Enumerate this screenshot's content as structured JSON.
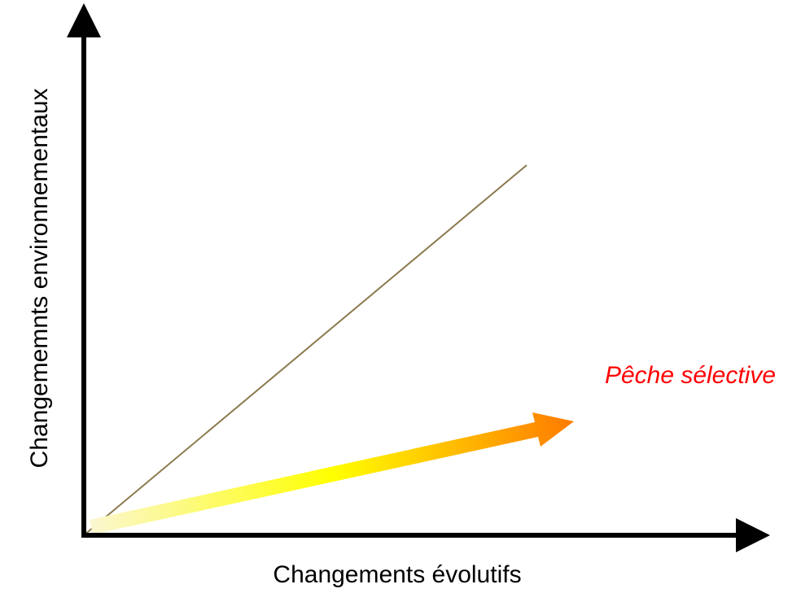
{
  "y_axis_label": "Changememnts environnementaux",
  "x_axis_label": "Changements évolutifs",
  "annotation": "Pêche sélective"
}
